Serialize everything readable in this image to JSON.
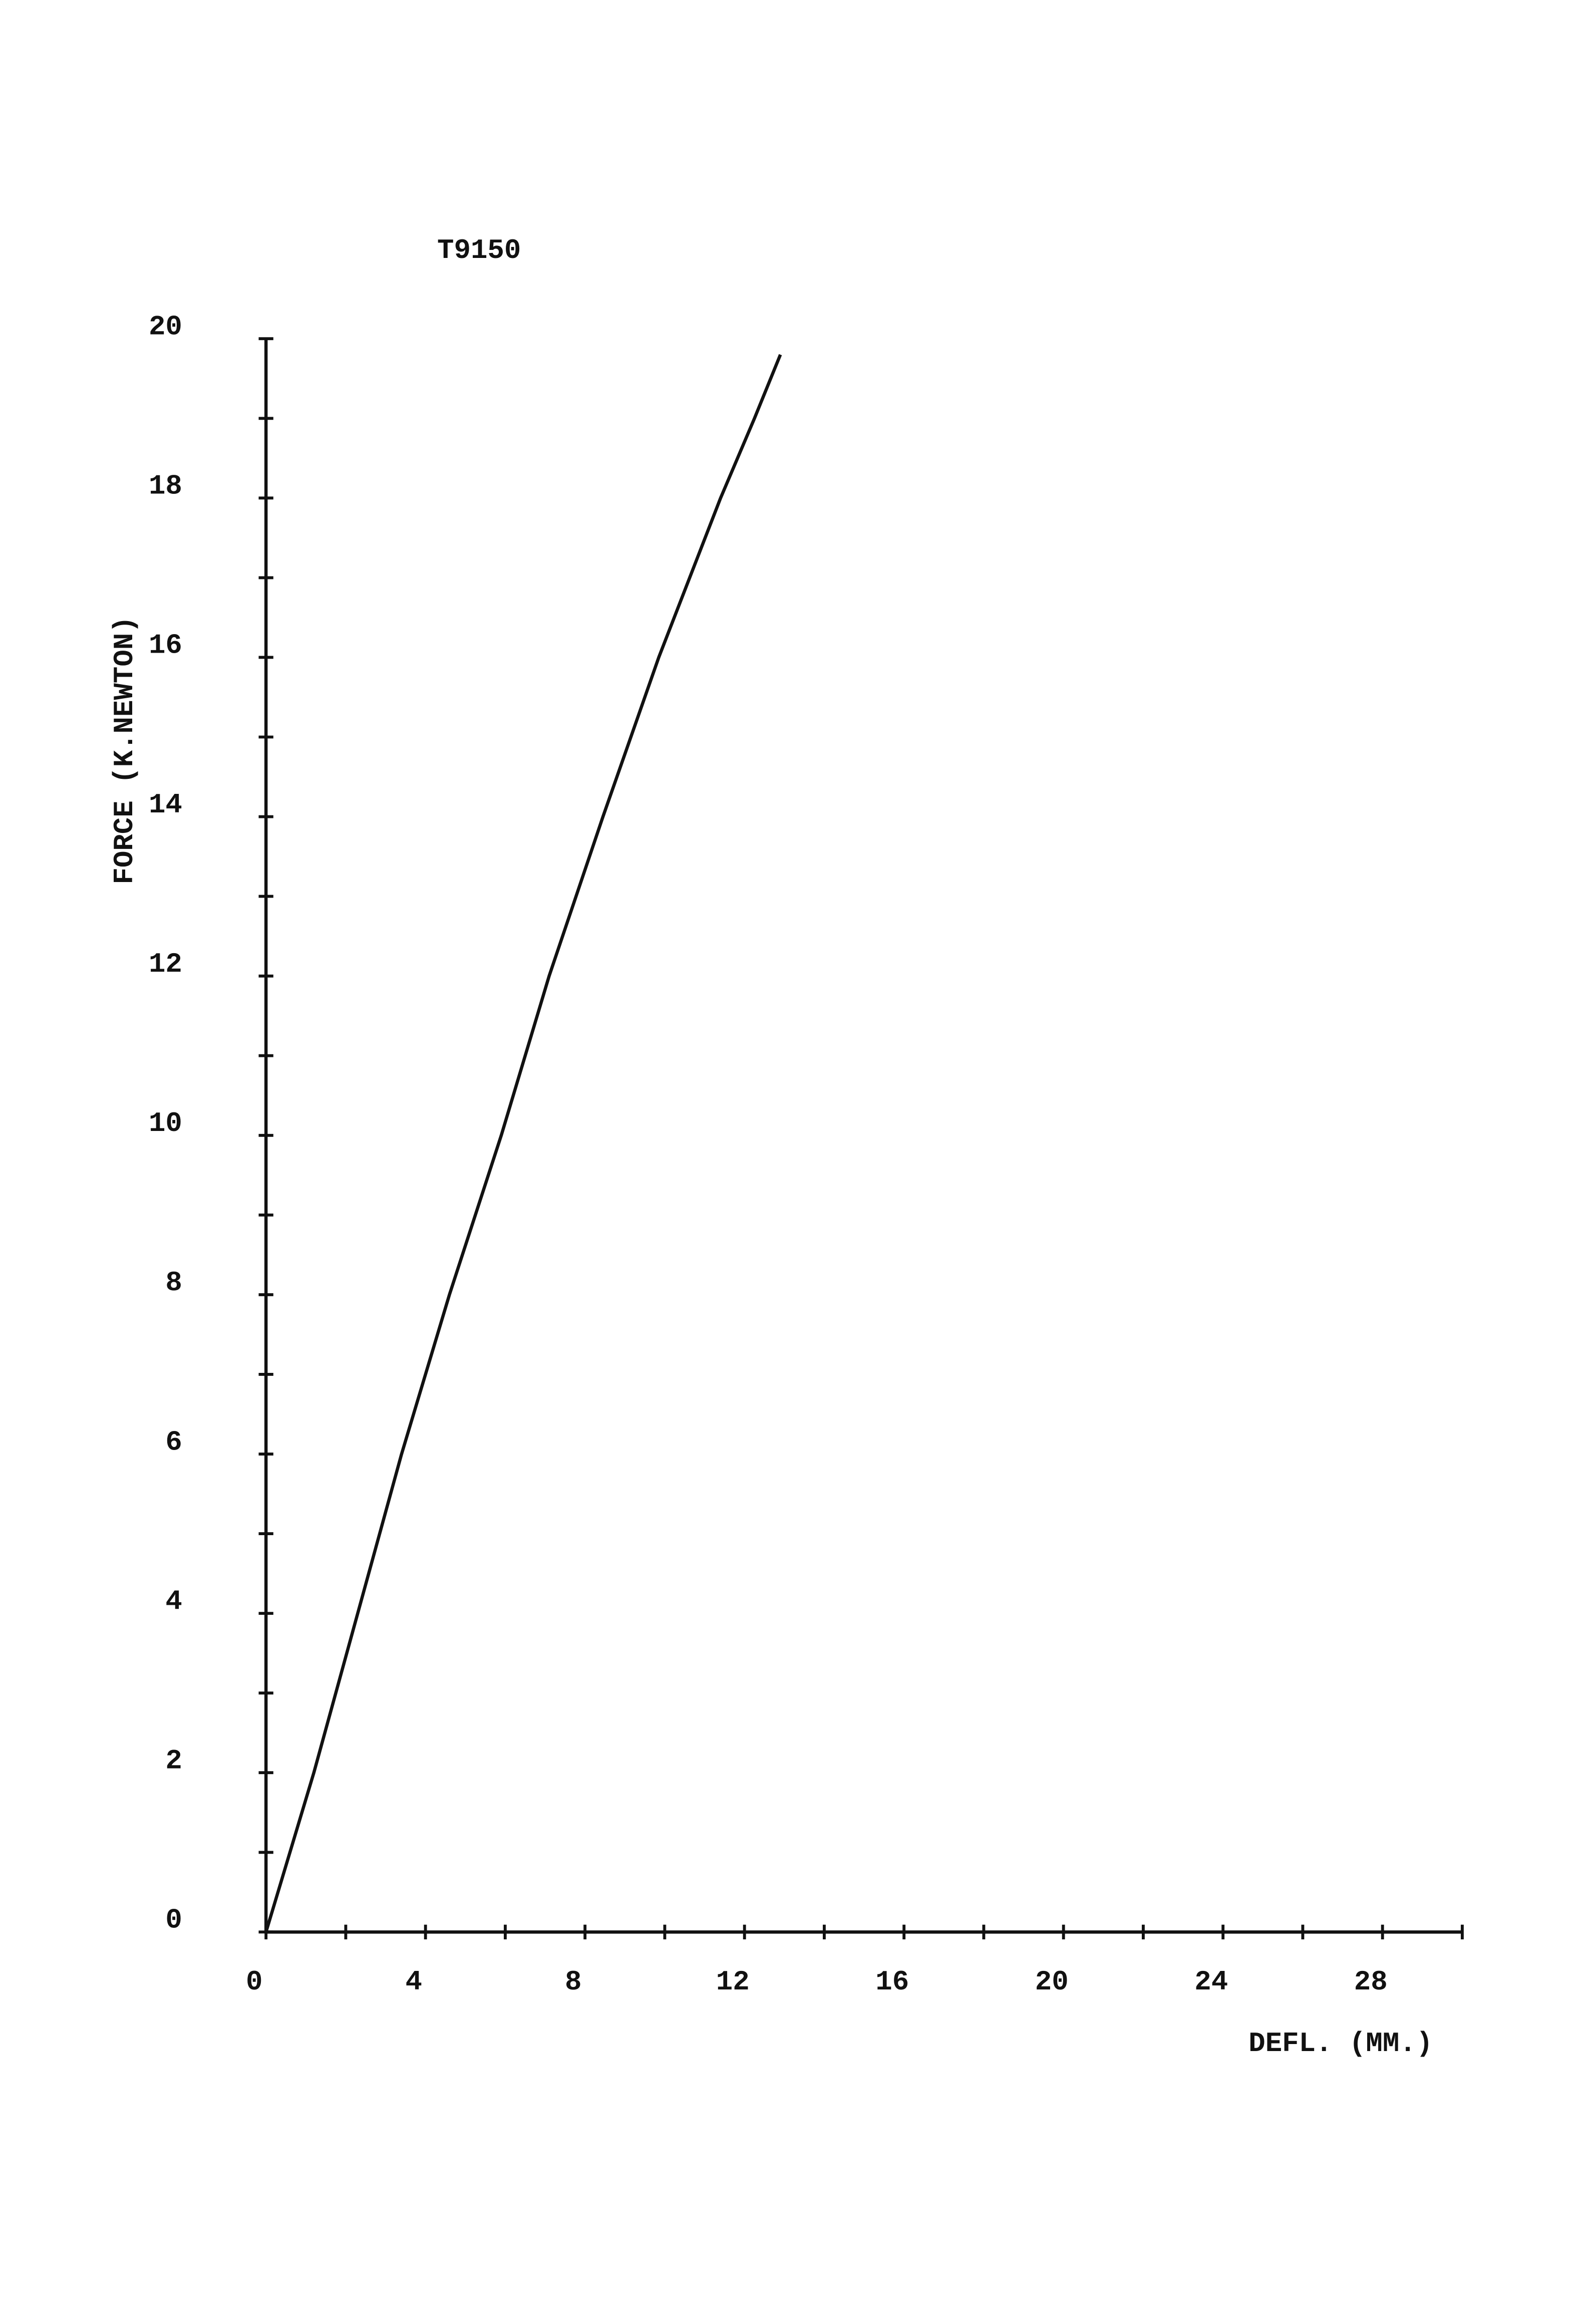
{
  "chart_data": {
    "type": "line",
    "title": "T9150",
    "x_label": "DEFL. (MM.)",
    "y_label": "FORCE (K.NEWTON)",
    "x": [
      0,
      1.2,
      2.3,
      3.4,
      4.6,
      5.9,
      7.1,
      8.45,
      9.85,
      11.4,
      12.25,
      12.9
    ],
    "series": [
      {
        "color": "#111111",
        "values": [
          0,
          2,
          4,
          6,
          8,
          10,
          12,
          14,
          16,
          18,
          19,
          19.8
        ]
      }
    ],
    "xlim": [
      0,
      30
    ],
    "xticks": [
      0,
      4,
      8,
      12,
      16,
      20,
      24,
      28
    ],
    "ylim": [
      0,
      20
    ],
    "yticks": [
      0,
      2,
      4,
      6,
      8,
      10,
      12,
      14,
      16,
      18,
      20
    ],
    "grid": false
  }
}
